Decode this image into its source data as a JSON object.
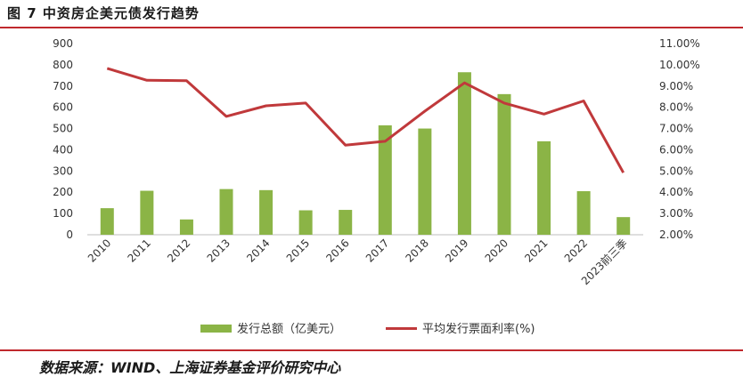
{
  "header": {
    "title": "图 7 中资房企美元债发行趋势"
  },
  "footer": {
    "source": "数据来源：WIND、上海证券基金评价研究中心"
  },
  "chart_data": {
    "type": "bar",
    "categories": [
      "2010",
      "2011",
      "2012",
      "2013",
      "2014",
      "2015",
      "2016",
      "2017",
      "2018",
      "2019",
      "2020",
      "2021",
      "2022",
      "2023前三季"
    ],
    "series": [
      {
        "name": "发行总额（亿美元）",
        "type": "bar",
        "axis": "left",
        "color": "#8bb446",
        "values": [
          125,
          207,
          72,
          215,
          210,
          115,
          117,
          515,
          500,
          765,
          662,
          440,
          205,
          83
        ]
      },
      {
        "name": "平均发行票面利率(%)",
        "type": "line",
        "axis": "right",
        "color": "#c0393b",
        "values": [
          9.83,
          9.27,
          9.25,
          7.57,
          8.07,
          8.2,
          6.22,
          6.4,
          7.82,
          9.15,
          8.2,
          7.68,
          8.3,
          4.92
        ]
      }
    ],
    "left_axis": {
      "ylim": [
        0,
        900
      ],
      "ticks": [
        "900",
        "800",
        "700",
        "600",
        "500",
        "400",
        "300",
        "200",
        "100",
        "0"
      ]
    },
    "right_axis": {
      "ylim": [
        2.0,
        11.0
      ],
      "ticks": [
        "11.00%",
        "10.00%",
        "9.00%",
        "8.00%",
        "7.00%",
        "6.00%",
        "5.00%",
        "4.00%",
        "3.00%",
        "2.00%"
      ]
    },
    "grid": false,
    "legend_position": "bottom"
  }
}
